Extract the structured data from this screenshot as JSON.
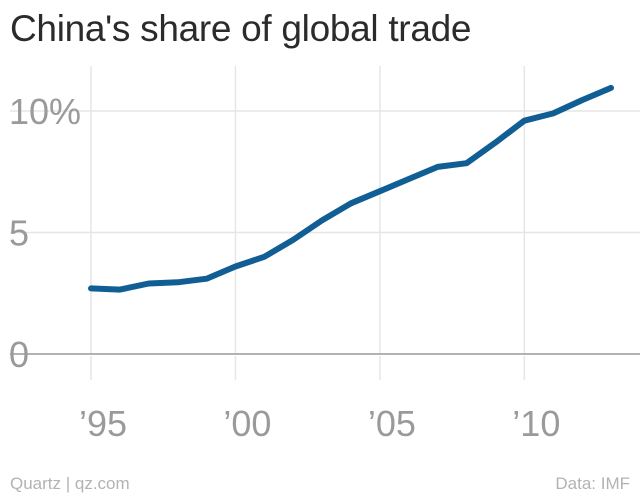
{
  "chart_data": {
    "type": "line",
    "title": "China's share of global trade",
    "xlabel": "",
    "ylabel": "",
    "x": [
      1995,
      1996,
      1997,
      1998,
      1999,
      2000,
      2001,
      2002,
      2003,
      2004,
      2005,
      2006,
      2007,
      2008,
      2009,
      2010,
      2011,
      2012,
      2013
    ],
    "series": [
      {
        "name": "",
        "color": "#105e94",
        "values": [
          2.7,
          2.65,
          2.9,
          2.95,
          3.1,
          3.6,
          4.0,
          4.7,
          5.5,
          6.2,
          6.7,
          7.2,
          7.7,
          7.85,
          8.7,
          9.6,
          9.9,
          10.45,
          10.95
        ]
      }
    ],
    "xlim": [
      1995,
      2013
    ],
    "ylim": [
      0,
      10
    ],
    "yticks": [
      {
        "value": 0,
        "label": "0"
      },
      {
        "value": 5,
        "label": "5"
      },
      {
        "value": 10,
        "label": "10%"
      }
    ],
    "xticks": [
      {
        "value": 1995,
        "label": "’95"
      },
      {
        "value": 2000,
        "label": "’00"
      },
      {
        "value": 2005,
        "label": "’05"
      },
      {
        "value": 2010,
        "label": "’10"
      }
    ],
    "grid": true,
    "legend": "none"
  },
  "footer": {
    "credit": "Quartz | qz.com",
    "source": "Data: IMF"
  },
  "colors": {
    "line": "#105e94",
    "grid": "#e6e6e6",
    "axis": "#9a9a9a",
    "tick_text": "#9a9a9a",
    "title_text": "#2b2b2b",
    "footer_text": "#b3b3b3"
  }
}
